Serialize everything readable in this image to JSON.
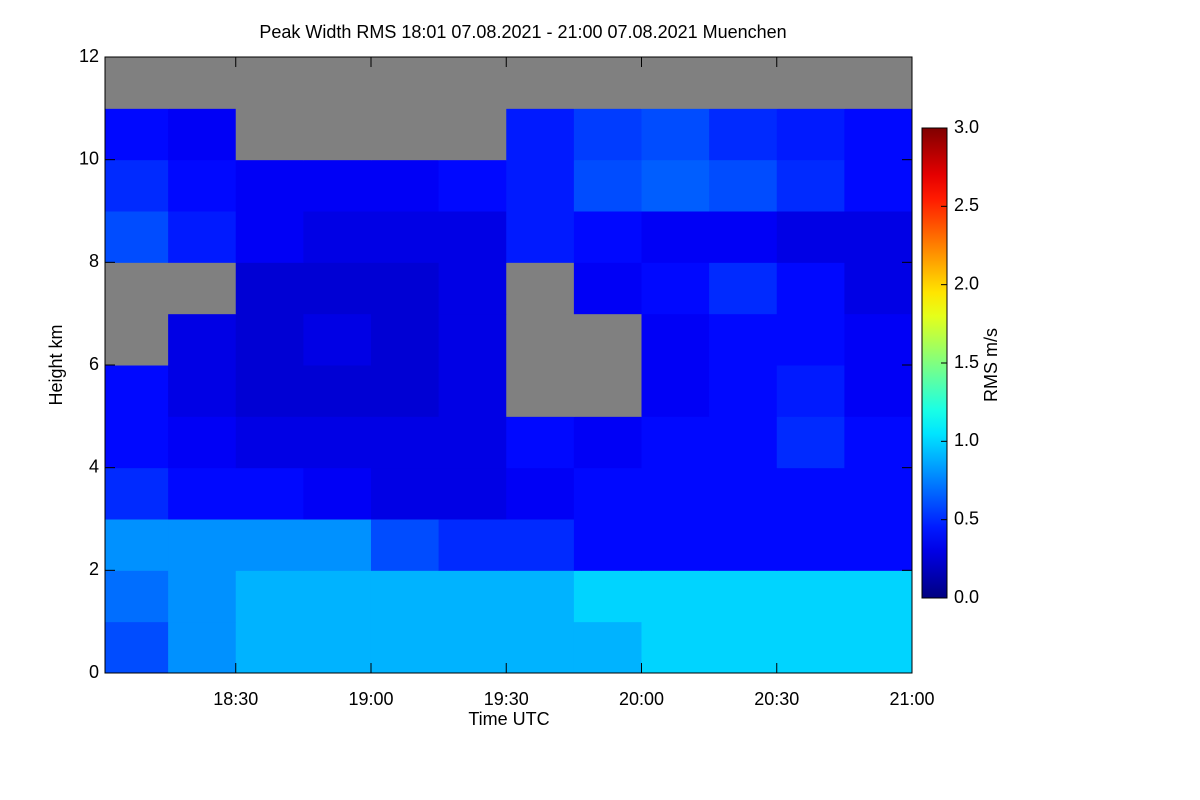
{
  "chart_data": {
    "type": "heatmap",
    "title": "Peak Width RMS   18:01 07.08.2021 - 21:00 07.08.2021 Muenchen",
    "x_label": "Time UTC",
    "y_label": "Height km",
    "colorbar_label": "RMS m/s",
    "xlim": [
      "18:01",
      "21:00"
    ],
    "xticks": [
      "18:30",
      "19:00",
      "19:30",
      "20:00",
      "20:30",
      "21:00"
    ],
    "ylim": [
      0,
      12
    ],
    "yticks": [
      0,
      2,
      4,
      6,
      8,
      10,
      12
    ],
    "zlim": [
      0,
      3
    ],
    "zticks": [
      {
        "value": 0,
        "label": "0.0"
      },
      {
        "value": 0.5,
        "label": "0.5"
      },
      {
        "value": 1,
        "label": "1.0"
      },
      {
        "value": 1.5,
        "label": "1.5"
      },
      {
        "value": 2,
        "label": "2.0"
      },
      {
        "value": 2.5,
        "label": "2.5"
      },
      {
        "value": 3,
        "label": "3.0"
      }
    ],
    "colormap": "jet",
    "missing_color": "#808080",
    "x_edges": [
      "18:01",
      "18:15",
      "18:30",
      "18:45",
      "19:00",
      "19:15",
      "19:30",
      "19:45",
      "20:00",
      "20:15",
      "20:30",
      "20:45",
      "21:00"
    ],
    "y_edges": [
      0,
      1,
      2,
      3,
      4,
      5,
      6,
      7,
      8,
      9,
      10,
      11,
      12
    ],
    "values": [
      [
        0.6,
        0.8,
        0.9,
        0.9,
        0.9,
        0.9,
        0.9,
        0.9,
        1.0,
        1.0,
        1.0,
        1.0
      ],
      [
        0.7,
        0.8,
        0.9,
        0.9,
        0.9,
        0.9,
        0.9,
        1.0,
        1.0,
        1.0,
        1.0,
        1.0
      ],
      [
        0.8,
        0.8,
        0.8,
        0.8,
        0.6,
        0.5,
        0.5,
        0.4,
        0.4,
        0.4,
        0.4,
        0.4
      ],
      [
        0.5,
        0.4,
        0.4,
        0.35,
        0.3,
        0.3,
        0.35,
        0.4,
        0.4,
        0.4,
        0.4,
        0.4
      ],
      [
        0.4,
        0.35,
        0.3,
        0.3,
        0.3,
        0.3,
        0.4,
        0.35,
        0.4,
        0.4,
        0.5,
        0.4
      ],
      [
        0.4,
        0.3,
        0.25,
        0.25,
        0.25,
        0.3,
        null,
        null,
        0.35,
        0.4,
        0.45,
        0.35
      ],
      [
        null,
        0.3,
        0.25,
        0.3,
        0.25,
        0.3,
        null,
        null,
        0.35,
        0.4,
        0.4,
        0.35
      ],
      [
        null,
        null,
        0.25,
        0.25,
        0.25,
        0.3,
        null,
        0.35,
        0.4,
        0.5,
        0.4,
        0.3
      ],
      [
        0.6,
        0.45,
        0.35,
        0.3,
        0.3,
        0.3,
        0.45,
        0.4,
        0.35,
        0.35,
        0.3,
        0.3
      ],
      [
        0.5,
        0.4,
        0.35,
        0.35,
        0.35,
        0.4,
        0.45,
        0.6,
        0.65,
        0.6,
        0.5,
        0.4
      ],
      [
        0.4,
        0.35,
        null,
        null,
        null,
        null,
        0.45,
        0.55,
        0.6,
        0.5,
        0.45,
        0.4
      ],
      [
        null,
        null,
        null,
        null,
        null,
        null,
        null,
        null,
        null,
        null,
        null,
        null
      ]
    ]
  }
}
